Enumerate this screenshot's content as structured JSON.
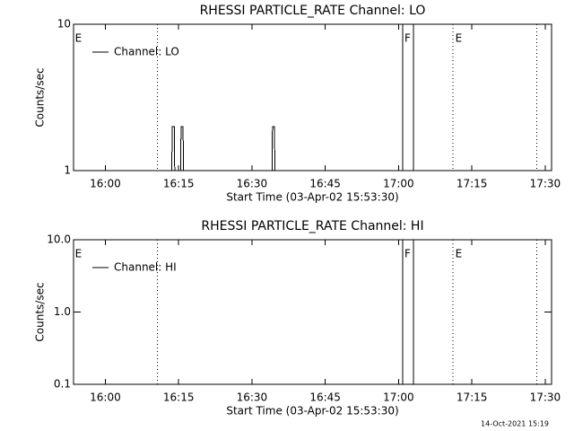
{
  "chart_data": [
    {
      "type": "line",
      "title": "RHESSI PARTICLE_RATE Channel: LO",
      "xlabel": "Start Time (03-Apr-02 15:53:30)",
      "ylabel": "Counts/sec",
      "ylog": true,
      "ylim": [
        1,
        10
      ],
      "yticks": [
        1,
        10
      ],
      "xlim": [
        953.5,
        1051.3
      ],
      "xticks": [
        {
          "value": 960,
          "label": "16:00"
        },
        {
          "value": 975,
          "label": "16:15"
        },
        {
          "value": 990,
          "label": "16:30"
        },
        {
          "value": 1005,
          "label": "16:45"
        },
        {
          "value": 1020,
          "label": "17:00"
        },
        {
          "value": 1035,
          "label": "17:15"
        },
        {
          "value": 1050,
          "label": "17:30"
        }
      ],
      "legend": "upper left",
      "x": [
        953.6,
        973.6,
        973.7,
        974.1,
        974.2,
        975.4,
        975.5,
        975.9,
        976.0,
        994.1,
        994.2,
        994.6,
        994.7,
        1051.2
      ],
      "series": [
        {
          "name": "Channel: LO",
          "color": "#000000",
          "values": [
            1,
            1,
            2,
            2,
            1,
            1,
            2,
            2,
            1,
            1,
            2,
            2,
            1,
            1
          ]
        }
      ],
      "markers": [
        {
          "x": 970.7,
          "style": "dotted"
        },
        {
          "x": 1020.8,
          "style": "solid"
        },
        {
          "x": 1023.0,
          "style": "solid"
        },
        {
          "x": 1031.1,
          "style": "dotted"
        },
        {
          "x": 1048.3,
          "style": "dotted"
        }
      ],
      "flags": [
        {
          "label": "E",
          "x": 953.8
        },
        {
          "label": "F",
          "x": 1021.2
        },
        {
          "label": "E",
          "x": 1031.6
        }
      ]
    },
    {
      "type": "line",
      "title": "RHESSI PARTICLE_RATE Channel: HI",
      "xlabel": "Start Time (03-Apr-02 15:53:30)",
      "ylabel": "Counts/sec",
      "ylog": true,
      "ylim": [
        0.1,
        10
      ],
      "yticks": [
        0.1,
        {
          "value": 1,
          "label": "1.0"
        },
        {
          "value": 10,
          "label": "10.0"
        }
      ],
      "xlim": [
        953.5,
        1051.3
      ],
      "xticks": [
        {
          "value": 960,
          "label": "16:00"
        },
        {
          "value": 975,
          "label": "16:15"
        },
        {
          "value": 990,
          "label": "16:30"
        },
        {
          "value": 1005,
          "label": "16:45"
        },
        {
          "value": 1020,
          "label": "17:00"
        },
        {
          "value": 1035,
          "label": "17:15"
        },
        {
          "value": 1050,
          "label": "17:30"
        }
      ],
      "legend": "upper left",
      "x": [],
      "series": [
        {
          "name": "Channel: HI",
          "color": "#000000",
          "values": []
        }
      ],
      "markers": [
        {
          "x": 970.7,
          "style": "dotted"
        },
        {
          "x": 1020.8,
          "style": "solid"
        },
        {
          "x": 1023.0,
          "style": "solid"
        },
        {
          "x": 1031.1,
          "style": "dotted"
        },
        {
          "x": 1048.3,
          "style": "dotted"
        }
      ],
      "flags": [
        {
          "label": "E",
          "x": 953.8
        },
        {
          "label": "F",
          "x": 1021.2
        },
        {
          "label": "E",
          "x": 1031.6
        }
      ]
    }
  ],
  "footer": "14-Oct-2021 15:19"
}
